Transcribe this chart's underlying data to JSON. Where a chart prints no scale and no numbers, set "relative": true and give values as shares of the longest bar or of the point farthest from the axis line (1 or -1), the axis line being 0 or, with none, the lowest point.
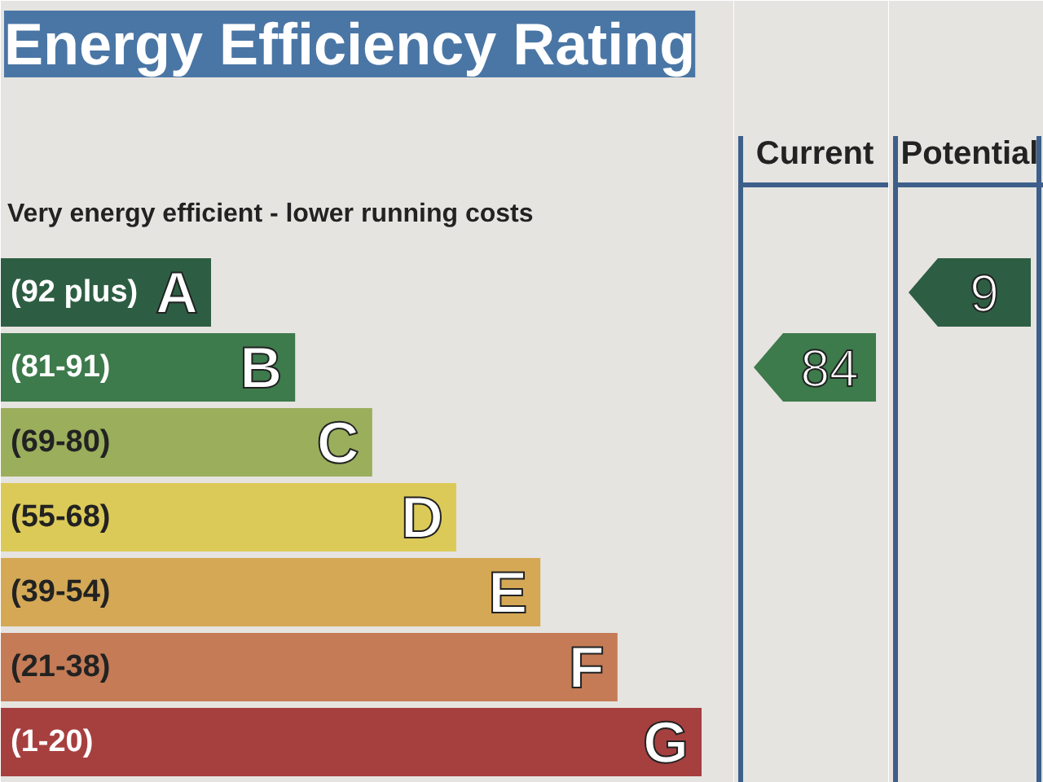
{
  "chart_data": [
    {
      "type": "bar",
      "orientation": "horizontal",
      "relative": true,
      "title": "Energy Efficiency Rating",
      "subtitle": "Very energy efficient - lower running costs",
      "categories": [
        "A",
        "B",
        "C",
        "D",
        "E",
        "F",
        "G"
      ],
      "values": [
        0.3,
        0.42,
        0.53,
        0.65,
        0.77,
        0.88,
        1
      ],
      "colors": [
        "#2d5e43",
        "#3d7a4c",
        "#9aae5c",
        "#dcca58",
        "#d4a855",
        "#c47b56",
        "#a6403f"
      ],
      "annotations": [
        "(92 plus)",
        "(81-91)",
        "(69-80)",
        "(55-68)",
        "(39-54)",
        "(21-38)",
        "(1-20)"
      ]
    },
    {
      "type": "other",
      "title": "Current",
      "categories": [
        null,
        null,
        null,
        null,
        null,
        null,
        null
      ],
      "values": [
        null,
        84,
        null,
        null,
        null,
        null,
        null
      ],
      "data_labels": true,
      "color": "#3d7a4c"
    },
    {
      "type": "other",
      "title": "Potential",
      "categories": [
        null,
        null,
        null,
        null,
        null,
        null,
        null
      ],
      "values": [
        null,
        null,
        null,
        null,
        null,
        null,
        null
      ],
      "value_labels": [
        "9",
        null,
        null,
        null,
        null,
        null,
        null
      ],
      "color": "#2d5e43"
    }
  ]
}
